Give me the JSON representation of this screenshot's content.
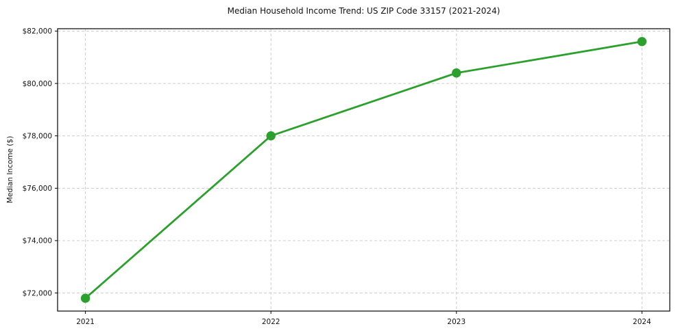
{
  "chart_data": {
    "type": "line",
    "title": "Median Household Income Trend: US ZIP Code 33157 (2021-2024)",
    "xlabel": "",
    "ylabel": "Median Income ($)",
    "x": [
      2021,
      2022,
      2023,
      2024
    ],
    "series": [
      {
        "name": "Median Household Income",
        "values": [
          71800,
          78000,
          80400,
          81600
        ]
      }
    ],
    "x_tick_labels": [
      "2021",
      "2022",
      "2023",
      "2024"
    ],
    "y_tick_values": [
      72000,
      74000,
      76000,
      78000,
      80000,
      82000
    ],
    "y_tick_labels": [
      "$72,000",
      "$74,000",
      "$76,000",
      "$78,000",
      "$80,000",
      "$82,000"
    ],
    "xlim": [
      2020.85,
      2024.15
    ],
    "ylim": [
      71310,
      82090
    ],
    "grid": true,
    "grid_style": "dashed",
    "legend": "none",
    "colors": {
      "line": "#2ca02c",
      "marker": "#2ca02c",
      "grid": "#cccccc",
      "axis": "#000000",
      "text": "#111111",
      "background": "#ffffff"
    },
    "marker": "circle"
  }
}
